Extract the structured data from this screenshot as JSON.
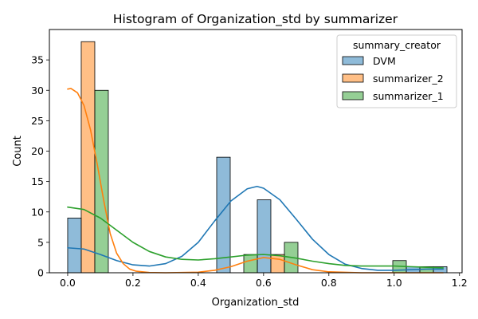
{
  "chart_data": {
    "type": "bar",
    "title": "Histogram of Organization_std by summarizer",
    "xlabel": "Organization_std",
    "ylabel": "Count",
    "xlim": [
      -0.056,
      1.208
    ],
    "ylim": [
      0,
      40
    ],
    "xticks": [
      "0.0",
      "0.2",
      "0.4",
      "0.6",
      "0.8",
      "1.0",
      "1.2"
    ],
    "xtick_values": [
      0,
      0.2,
      0.4,
      0.6,
      0.8,
      1.0,
      1.2
    ],
    "yticks": [
      "0",
      "5",
      "10",
      "15",
      "20",
      "25",
      "30",
      "35"
    ],
    "ytick_values": [
      0,
      5,
      10,
      15,
      20,
      25,
      30,
      35
    ],
    "grid": false,
    "legend": {
      "title": "summary_creator",
      "placement": "top-right"
    },
    "bin_width": 0.0415,
    "series": [
      {
        "name": "DVM",
        "color": "#1f77b4",
        "bars": [
          {
            "x": 0.0,
            "count": 9
          },
          {
            "x": 0.4564,
            "count": 19
          },
          {
            "x": 0.5808,
            "count": 12
          },
          {
            "x": 1.0372,
            "count": 1
          },
          {
            "x": 1.1202,
            "count": 1
          }
        ],
        "kde": {
          "x": [
            0.0,
            0.05,
            0.1,
            0.15,
            0.2,
            0.25,
            0.3,
            0.35,
            0.4,
            0.45,
            0.5,
            0.55,
            0.58,
            0.6,
            0.65,
            0.7,
            0.75,
            0.8,
            0.85,
            0.9,
            0.95,
            1.0,
            1.05,
            1.1,
            1.15
          ],
          "y": [
            4.1,
            3.9,
            3.0,
            2.0,
            1.3,
            1.1,
            1.5,
            2.7,
            5.0,
            8.5,
            11.8,
            13.8,
            14.2,
            13.9,
            12.0,
            8.8,
            5.5,
            3.0,
            1.4,
            0.7,
            0.4,
            0.4,
            0.5,
            0.6,
            0.6
          ]
        }
      },
      {
        "name": "summarizer_2",
        "color": "#ff7f0e",
        "bars": [
          {
            "x": 0.0415,
            "count": 38
          },
          {
            "x": 0.6223,
            "count": 3
          }
        ],
        "kde": {
          "x": [
            0.0,
            0.01,
            0.03,
            0.05,
            0.07,
            0.09,
            0.11,
            0.13,
            0.15,
            0.17,
            0.19,
            0.21,
            0.25,
            0.3,
            0.4,
            0.45,
            0.5,
            0.55,
            0.6,
            0.65,
            0.7,
            0.75,
            0.8,
            0.9,
            1.0,
            1.15
          ],
          "y": [
            30.2,
            30.3,
            29.6,
            27.5,
            23.5,
            18.0,
            12.0,
            6.5,
            3.2,
            1.5,
            0.6,
            0.25,
            0.05,
            0.0,
            0.1,
            0.4,
            1.0,
            1.9,
            2.5,
            2.2,
            1.3,
            0.5,
            0.15,
            0.0,
            0.0,
            0.0
          ]
        }
      },
      {
        "name": "summarizer_1",
        "color": "#2ca02c",
        "bars": [
          {
            "x": 0.083,
            "count": 30
          },
          {
            "x": 0.5394,
            "count": 3
          },
          {
            "x": 0.6638,
            "count": 5
          },
          {
            "x": 0.9957,
            "count": 2
          },
          {
            "x": 1.0787,
            "count": 1
          }
        ],
        "kde": {
          "x": [
            0.0,
            0.05,
            0.1,
            0.15,
            0.2,
            0.25,
            0.3,
            0.35,
            0.4,
            0.45,
            0.5,
            0.55,
            0.6,
            0.65,
            0.7,
            0.75,
            0.8,
            0.85,
            0.9,
            0.95,
            1.0,
            1.05,
            1.1,
            1.15
          ],
          "y": [
            10.8,
            10.4,
            9.0,
            7.0,
            5.0,
            3.5,
            2.6,
            2.2,
            2.1,
            2.3,
            2.6,
            2.9,
            3.0,
            2.8,
            2.4,
            1.9,
            1.5,
            1.2,
            1.1,
            1.1,
            1.1,
            1.0,
            0.9,
            0.8
          ]
        }
      }
    ]
  }
}
